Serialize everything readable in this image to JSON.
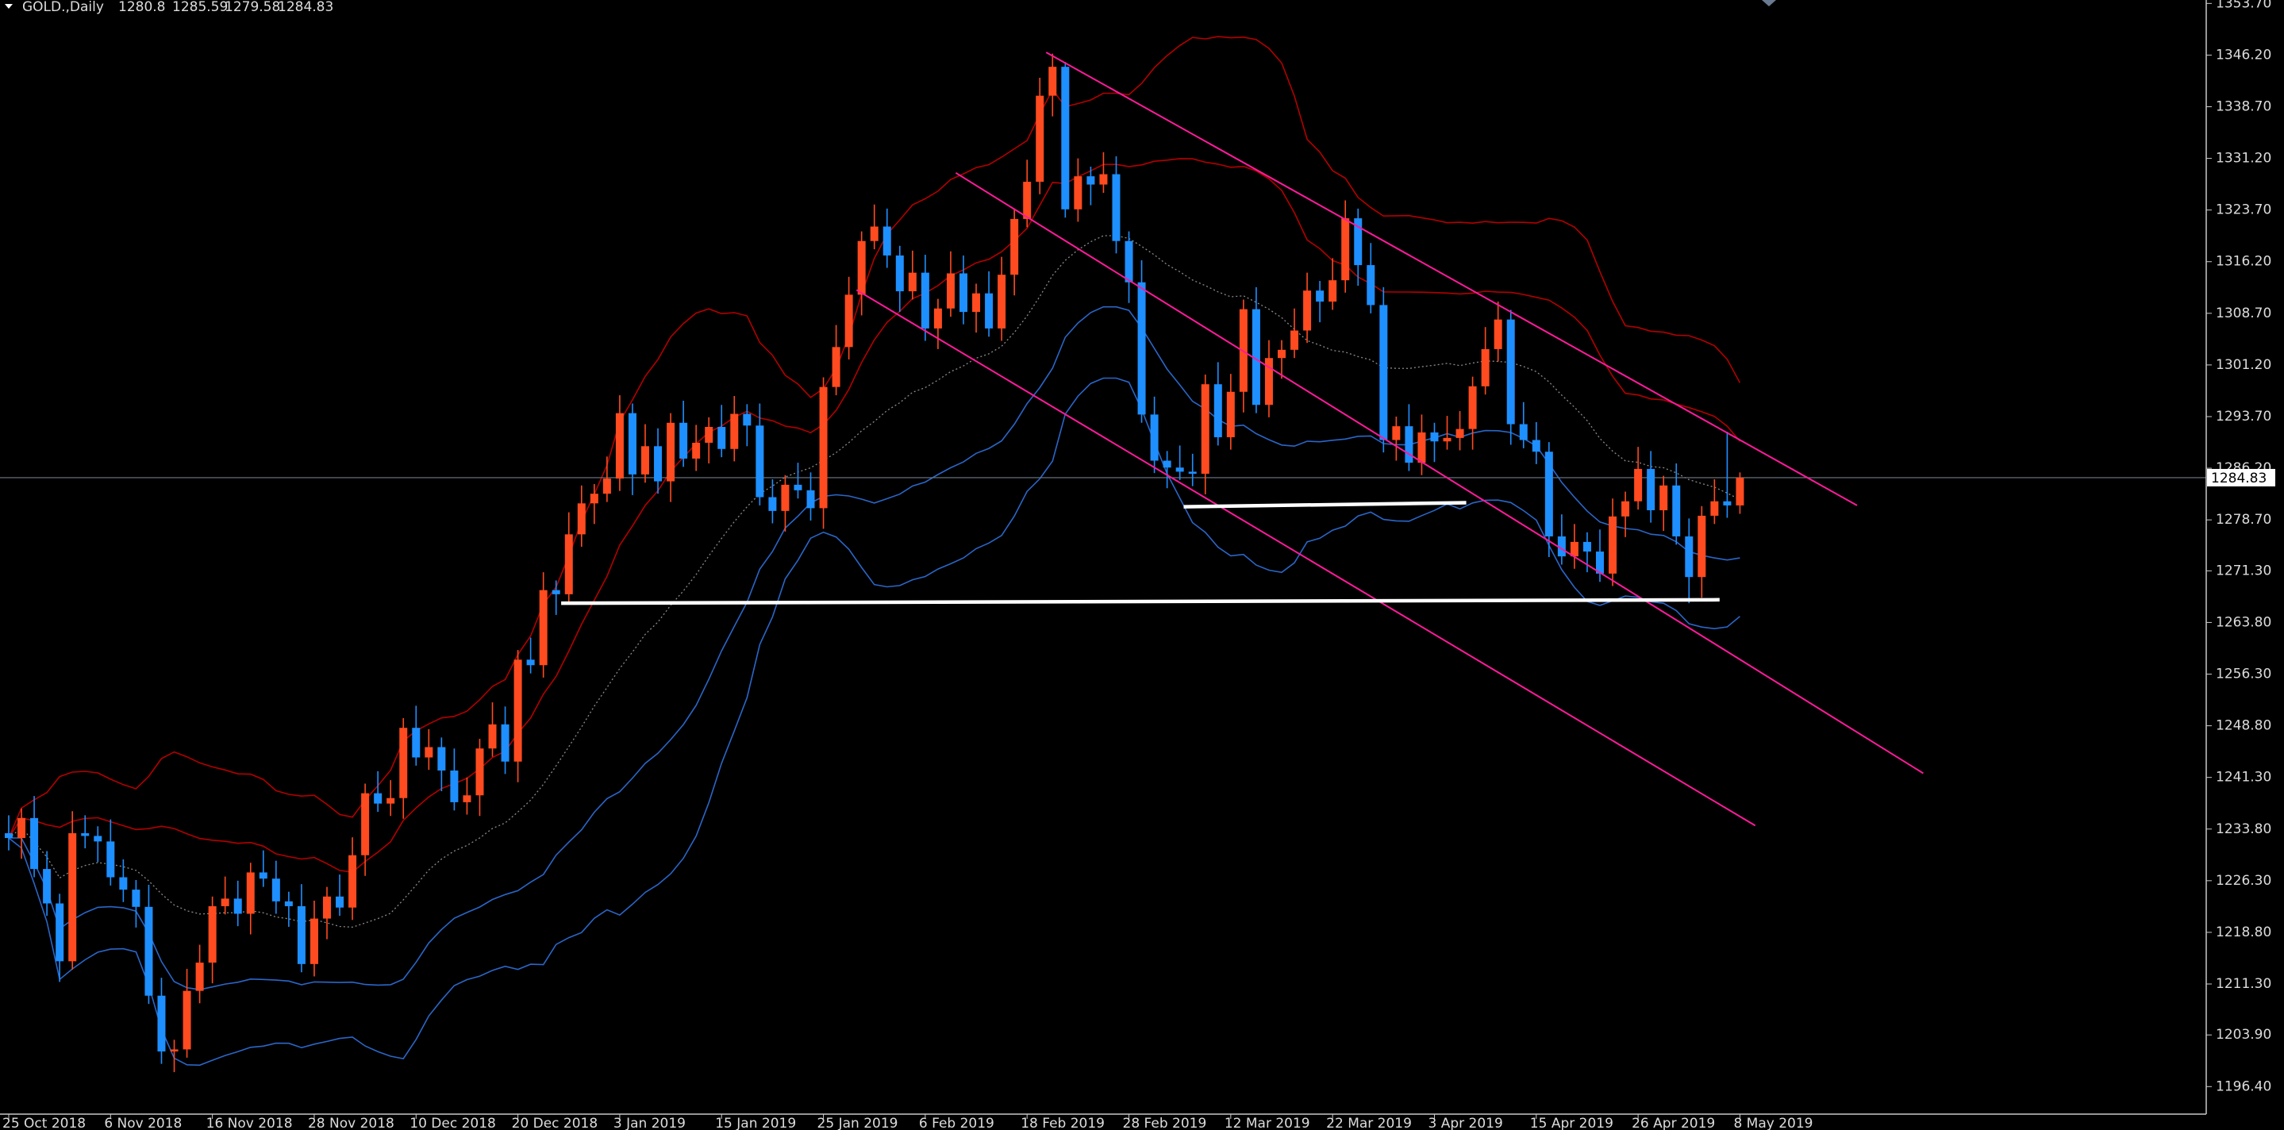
{
  "chart_data": {
    "type": "candlestick",
    "symbol": "GOLD.,Daily",
    "categories": [
      "25 Oct 2018",
      null,
      null,
      null,
      null,
      null,
      null,
      null,
      "6 Nov 2018",
      null,
      null,
      null,
      null,
      null,
      null,
      null,
      "16 Nov 2018",
      null,
      null,
      null,
      null,
      null,
      null,
      null,
      "28 Nov 2018",
      null,
      null,
      null,
      null,
      null,
      null,
      null,
      "10 Dec 2018",
      null,
      null,
      null,
      null,
      null,
      null,
      null,
      "20 Dec 2018",
      null,
      null,
      null,
      null,
      null,
      null,
      null,
      "3 Jan 2019",
      null,
      null,
      null,
      null,
      null,
      null,
      null,
      "15 Jan 2019",
      null,
      null,
      null,
      null,
      null,
      null,
      null,
      "25 Jan 2019",
      null,
      null,
      null,
      null,
      null,
      null,
      null,
      "6 Feb 2019",
      null,
      null,
      null,
      null,
      null,
      null,
      null,
      "18 Feb 2019",
      null,
      null,
      null,
      null,
      null,
      null,
      null,
      "28 Feb 2019",
      null,
      null,
      null,
      null,
      null,
      null,
      null,
      "12 Mar 2019",
      null,
      null,
      null,
      null,
      null,
      null,
      null,
      "22 Mar 2019",
      null,
      null,
      null,
      null,
      null,
      null,
      null,
      "3 Apr 2019",
      null,
      null,
      null,
      null,
      null,
      null,
      null,
      "15 Apr 2019",
      null,
      null,
      null,
      null,
      null,
      null,
      null,
      "26 Apr 2019",
      null,
      null,
      null,
      null,
      null,
      null,
      null,
      "8 May 2019"
    ],
    "open": [
      1233.2,
      1232.5,
      1235.4,
      1228.0,
      1223.0,
      1214.6,
      1233.2,
      1232.8,
      1232.0,
      1226.8,
      1225.0,
      1222.5,
      1209.6,
      1201.5,
      1201.8,
      1210.3,
      1214.4,
      1222.6,
      1223.7,
      1221.5,
      1227.5,
      1226.6,
      1223.3,
      1222.6,
      1214.2,
      1220.8,
      1224.0,
      1222.4,
      1230.0,
      1239.0,
      1237.5,
      1238.3,
      1248.5,
      1244.2,
      1245.7,
      1242.3,
      1237.7,
      1238.7,
      1245.5,
      1249.0,
      1243.6,
      1258.4,
      1257.6,
      1268.5,
      1267.9,
      1276.6,
      1281.1,
      1282.5,
      1284.7,
      1294.2,
      1285.3,
      1289.4,
      1284.3,
      1292.8,
      1287.6,
      1289.9,
      1292.2,
      1289.0,
      1294.1,
      1292.4,
      1282.0,
      1280.0,
      1283.8,
      1283.0,
      1280.4,
      1298.0,
      1303.8,
      1311.4,
      1319.2,
      1321.3,
      1317.1,
      1311.9,
      1314.6,
      1306.5,
      1309.4,
      1314.5,
      1308.9,
      1311.6,
      1306.5,
      1314.3,
      1322.4,
      1327.8,
      1340.3,
      1344.5,
      1323.8,
      1328.6,
      1327.4,
      1328.9,
      1319.2,
      1313.2,
      1294.0,
      1287.3,
      1286.3,
      1285.7,
      1285.4,
      1298.4,
      1290.7,
      1297.3,
      1309.3,
      1295.4,
      1302.2,
      1303.4,
      1306.2,
      1312.0,
      1310.4,
      1313.5,
      1322.5,
      1315.7,
      1309.9,
      1290.3,
      1292.3,
      1287.0,
      1291.4,
      1290.1,
      1290.6,
      1291.9,
      1298.1,
      1303.5,
      1307.8,
      1292.6,
      1290.3,
      1288.6,
      1276.3,
      1273.4,
      1275.5,
      1274.1,
      1270.9,
      1279.2,
      1281.4,
      1286.1,
      1280.1,
      1283.7,
      1276.3,
      1270.4,
      1279.3,
      1281.4,
      1280.8
    ],
    "high": [
      1235.8,
      1236.8,
      1238.6,
      1230.6,
      1224.4,
      1236.4,
      1235.8,
      1234.2,
      1235.2,
      1229.4,
      1226.4,
      1225.7,
      1212.2,
      1203.2,
      1213.5,
      1217.0,
      1224.0,
      1226.9,
      1226.3,
      1228.9,
      1230.7,
      1229.2,
      1224.7,
      1225.8,
      1223.4,
      1225.4,
      1227.2,
      1232.6,
      1240.4,
      1242.2,
      1240.9,
      1249.9,
      1251.7,
      1248.3,
      1247.1,
      1245.5,
      1241.3,
      1246.9,
      1252.2,
      1251.6,
      1259.8,
      1261.6,
      1271.1,
      1269.9,
      1279.8,
      1283.7,
      1283.9,
      1287.9,
      1296.8,
      1295.6,
      1292.6,
      1292.0,
      1294.2,
      1296.0,
      1292.5,
      1293.6,
      1295.4,
      1296.7,
      1295.5,
      1295.6,
      1284.6,
      1285.2,
      1287.0,
      1285.6,
      1299.4,
      1307.0,
      1314.0,
      1320.6,
      1324.5,
      1323.9,
      1318.5,
      1317.8,
      1317.2,
      1310.8,
      1317.7,
      1317.1,
      1313.0,
      1314.8,
      1316.9,
      1323.8,
      1331.0,
      1342.9,
      1346.4,
      1345.2,
      1331.2,
      1330.0,
      1332.1,
      1331.5,
      1320.6,
      1316.4,
      1296.6,
      1288.7,
      1289.5,
      1288.3,
      1299.8,
      1301.6,
      1299.9,
      1310.7,
      1312.5,
      1304.8,
      1304.8,
      1309.4,
      1314.6,
      1313.4,
      1316.7,
      1325.1,
      1323.9,
      1318.9,
      1312.5,
      1293.7,
      1295.5,
      1294.0,
      1292.8,
      1293.8,
      1294.5,
      1299.5,
      1306.7,
      1310.4,
      1309.2,
      1295.8,
      1292.9,
      1290.0,
      1279.5,
      1278.1,
      1276.9,
      1277.3,
      1281.8,
      1282.8,
      1289.3,
      1288.7,
      1285.1,
      1286.9,
      1278.9,
      1280.7,
      1284.6,
      1291.5,
      1285.59
    ],
    "low": [
      1230.7,
      1229.5,
      1226.8,
      1221.2,
      1211.6,
      1213.4,
      1231.0,
      1229.0,
      1225.6,
      1223.2,
      1219.5,
      1208.4,
      1199.7,
      1198.5,
      1200.6,
      1208.5,
      1211.4,
      1221.4,
      1219.7,
      1218.5,
      1225.4,
      1221.5,
      1219.6,
      1213.0,
      1212.4,
      1217.8,
      1221.2,
      1220.6,
      1227.0,
      1236.3,
      1235.7,
      1235.3,
      1243.0,
      1242.4,
      1239.3,
      1236.5,
      1235.9,
      1235.7,
      1244.3,
      1241.8,
      1240.6,
      1256.4,
      1255.8,
      1264.9,
      1266.7,
      1274.8,
      1278.1,
      1281.3,
      1282.9,
      1282.3,
      1284.1,
      1282.5,
      1281.3,
      1286.4,
      1285.8,
      1286.9,
      1287.8,
      1287.2,
      1289.4,
      1280.8,
      1278.2,
      1277.0,
      1281.8,
      1278.6,
      1277.4,
      1296.8,
      1302.0,
      1308.4,
      1318.0,
      1315.3,
      1308.9,
      1310.7,
      1304.7,
      1303.5,
      1308.2,
      1307.1,
      1305.9,
      1305.3,
      1304.7,
      1311.3,
      1321.2,
      1326.0,
      1337.3,
      1322.6,
      1322.0,
      1324.4,
      1326.2,
      1317.4,
      1310.2,
      1292.8,
      1285.5,
      1283.3,
      1284.5,
      1283.6,
      1282.4,
      1289.5,
      1288.9,
      1294.3,
      1294.2,
      1293.6,
      1299.2,
      1302.2,
      1304.4,
      1307.4,
      1309.2,
      1311.7,
      1312.7,
      1308.7,
      1288.5,
      1287.3,
      1285.8,
      1285.2,
      1287.1,
      1288.9,
      1288.8,
      1288.9,
      1296.9,
      1301.7,
      1289.6,
      1289.1,
      1286.8,
      1273.3,
      1272.2,
      1271.6,
      1271.1,
      1269.7,
      1269.1,
      1276.2,
      1280.2,
      1278.3,
      1277.1,
      1275.1,
      1266.6,
      1267.4,
      1278.1,
      1279.0,
      1279.58
    ],
    "close": [
      1232.5,
      1235.4,
      1228.0,
      1223.0,
      1214.6,
      1233.2,
      1232.8,
      1232.0,
      1226.8,
      1225.0,
      1222.5,
      1209.6,
      1201.5,
      1201.8,
      1210.3,
      1214.4,
      1222.6,
      1223.7,
      1221.5,
      1227.5,
      1226.6,
      1223.3,
      1222.6,
      1214.2,
      1220.8,
      1224.0,
      1222.4,
      1230.0,
      1239.0,
      1237.5,
      1238.3,
      1248.5,
      1244.2,
      1245.7,
      1242.3,
      1237.7,
      1238.7,
      1245.5,
      1249.0,
      1243.6,
      1258.4,
      1257.6,
      1268.5,
      1267.9,
      1276.6,
      1281.1,
      1282.5,
      1284.7,
      1294.2,
      1285.3,
      1289.4,
      1284.3,
      1292.8,
      1287.6,
      1289.9,
      1292.2,
      1289.0,
      1294.1,
      1292.4,
      1282.0,
      1280.0,
      1283.8,
      1283.0,
      1280.4,
      1298.0,
      1303.8,
      1311.4,
      1319.2,
      1321.3,
      1317.1,
      1311.9,
      1314.6,
      1306.5,
      1309.4,
      1314.5,
      1308.9,
      1311.6,
      1306.5,
      1314.3,
      1322.4,
      1327.8,
      1340.3,
      1344.5,
      1323.8,
      1328.6,
      1327.4,
      1328.9,
      1319.2,
      1313.2,
      1294.0,
      1287.3,
      1286.3,
      1285.7,
      1285.4,
      1298.4,
      1290.7,
      1297.3,
      1309.3,
      1295.4,
      1302.2,
      1303.4,
      1306.2,
      1312.0,
      1310.4,
      1313.5,
      1322.5,
      1315.7,
      1309.9,
      1290.3,
      1292.3,
      1287.0,
      1291.4,
      1290.1,
      1290.6,
      1291.9,
      1298.1,
      1303.5,
      1307.8,
      1292.6,
      1290.3,
      1288.6,
      1276.3,
      1273.4,
      1275.5,
      1274.1,
      1270.9,
      1279.2,
      1281.4,
      1286.1,
      1280.1,
      1283.7,
      1276.3,
      1270.4,
      1279.3,
      1281.4,
      1280.8,
      1284.83
    ],
    "bull_color": "#ff4b1f",
    "bear_color": "#1e8fff",
    "ylim": [
      1192.4,
      1354.2
    ],
    "yticks": [
      {
        "value": 1353.7,
        "label": "1353.70"
      },
      {
        "value": 1346.2,
        "label": "1346.20"
      },
      {
        "value": 1338.7,
        "label": "1338.70"
      },
      {
        "value": 1331.2,
        "label": "1331.20"
      },
      {
        "value": 1323.7,
        "label": "1323.70"
      },
      {
        "value": 1316.2,
        "label": "1316.20"
      },
      {
        "value": 1308.7,
        "label": "1308.70"
      },
      {
        "value": 1301.2,
        "label": "1301.20"
      },
      {
        "value": 1293.7,
        "label": "1293.70"
      },
      {
        "value": 1286.2,
        "label": "1286.20"
      },
      {
        "value": 1278.7,
        "label": "1278.70"
      },
      {
        "value": 1271.3,
        "label": "1271.30"
      },
      {
        "value": 1263.8,
        "label": "1263.80"
      },
      {
        "value": 1256.3,
        "label": "1256.30"
      },
      {
        "value": 1248.8,
        "label": "1248.80"
      },
      {
        "value": 1241.3,
        "label": "1241.30"
      },
      {
        "value": 1233.8,
        "label": "1233.80"
      },
      {
        "value": 1226.3,
        "label": "1226.30"
      },
      {
        "value": 1218.8,
        "label": "1218.80"
      },
      {
        "value": 1211.3,
        "label": "1211.30"
      },
      {
        "value": 1203.9,
        "label": "1203.90"
      },
      {
        "value": 1196.4,
        "label": "1196.40"
      }
    ],
    "bands": {
      "period": 20,
      "deviations": [
        1,
        2
      ],
      "upper_color": "#b40000",
      "lower_color": "#2a66c8",
      "middle_color": "#8a8a8a"
    },
    "trendlines": [
      {
        "color": "#ff1a9c",
        "start": [
          81.5,
          1346.6
        ],
        "end": [
          145.2,
          1280.8
        ]
      },
      {
        "color": "#ff1a9c",
        "start": [
          74.4,
          1329.1
        ],
        "end": [
          150.4,
          1241.9
        ]
      },
      {
        "color": "#ff1a9c",
        "start": [
          66.6,
          1312.1
        ],
        "end": [
          137.2,
          1234.3
        ]
      },
      {
        "color": "#ffffff",
        "start": [
          43.4,
          1266.6
        ],
        "end": [
          134.4,
          1267.1
        ]
      },
      {
        "color": "#ffffff",
        "start": [
          92.3,
          1280.6
        ],
        "end": [
          114.5,
          1281.2
        ]
      }
    ]
  }
}
